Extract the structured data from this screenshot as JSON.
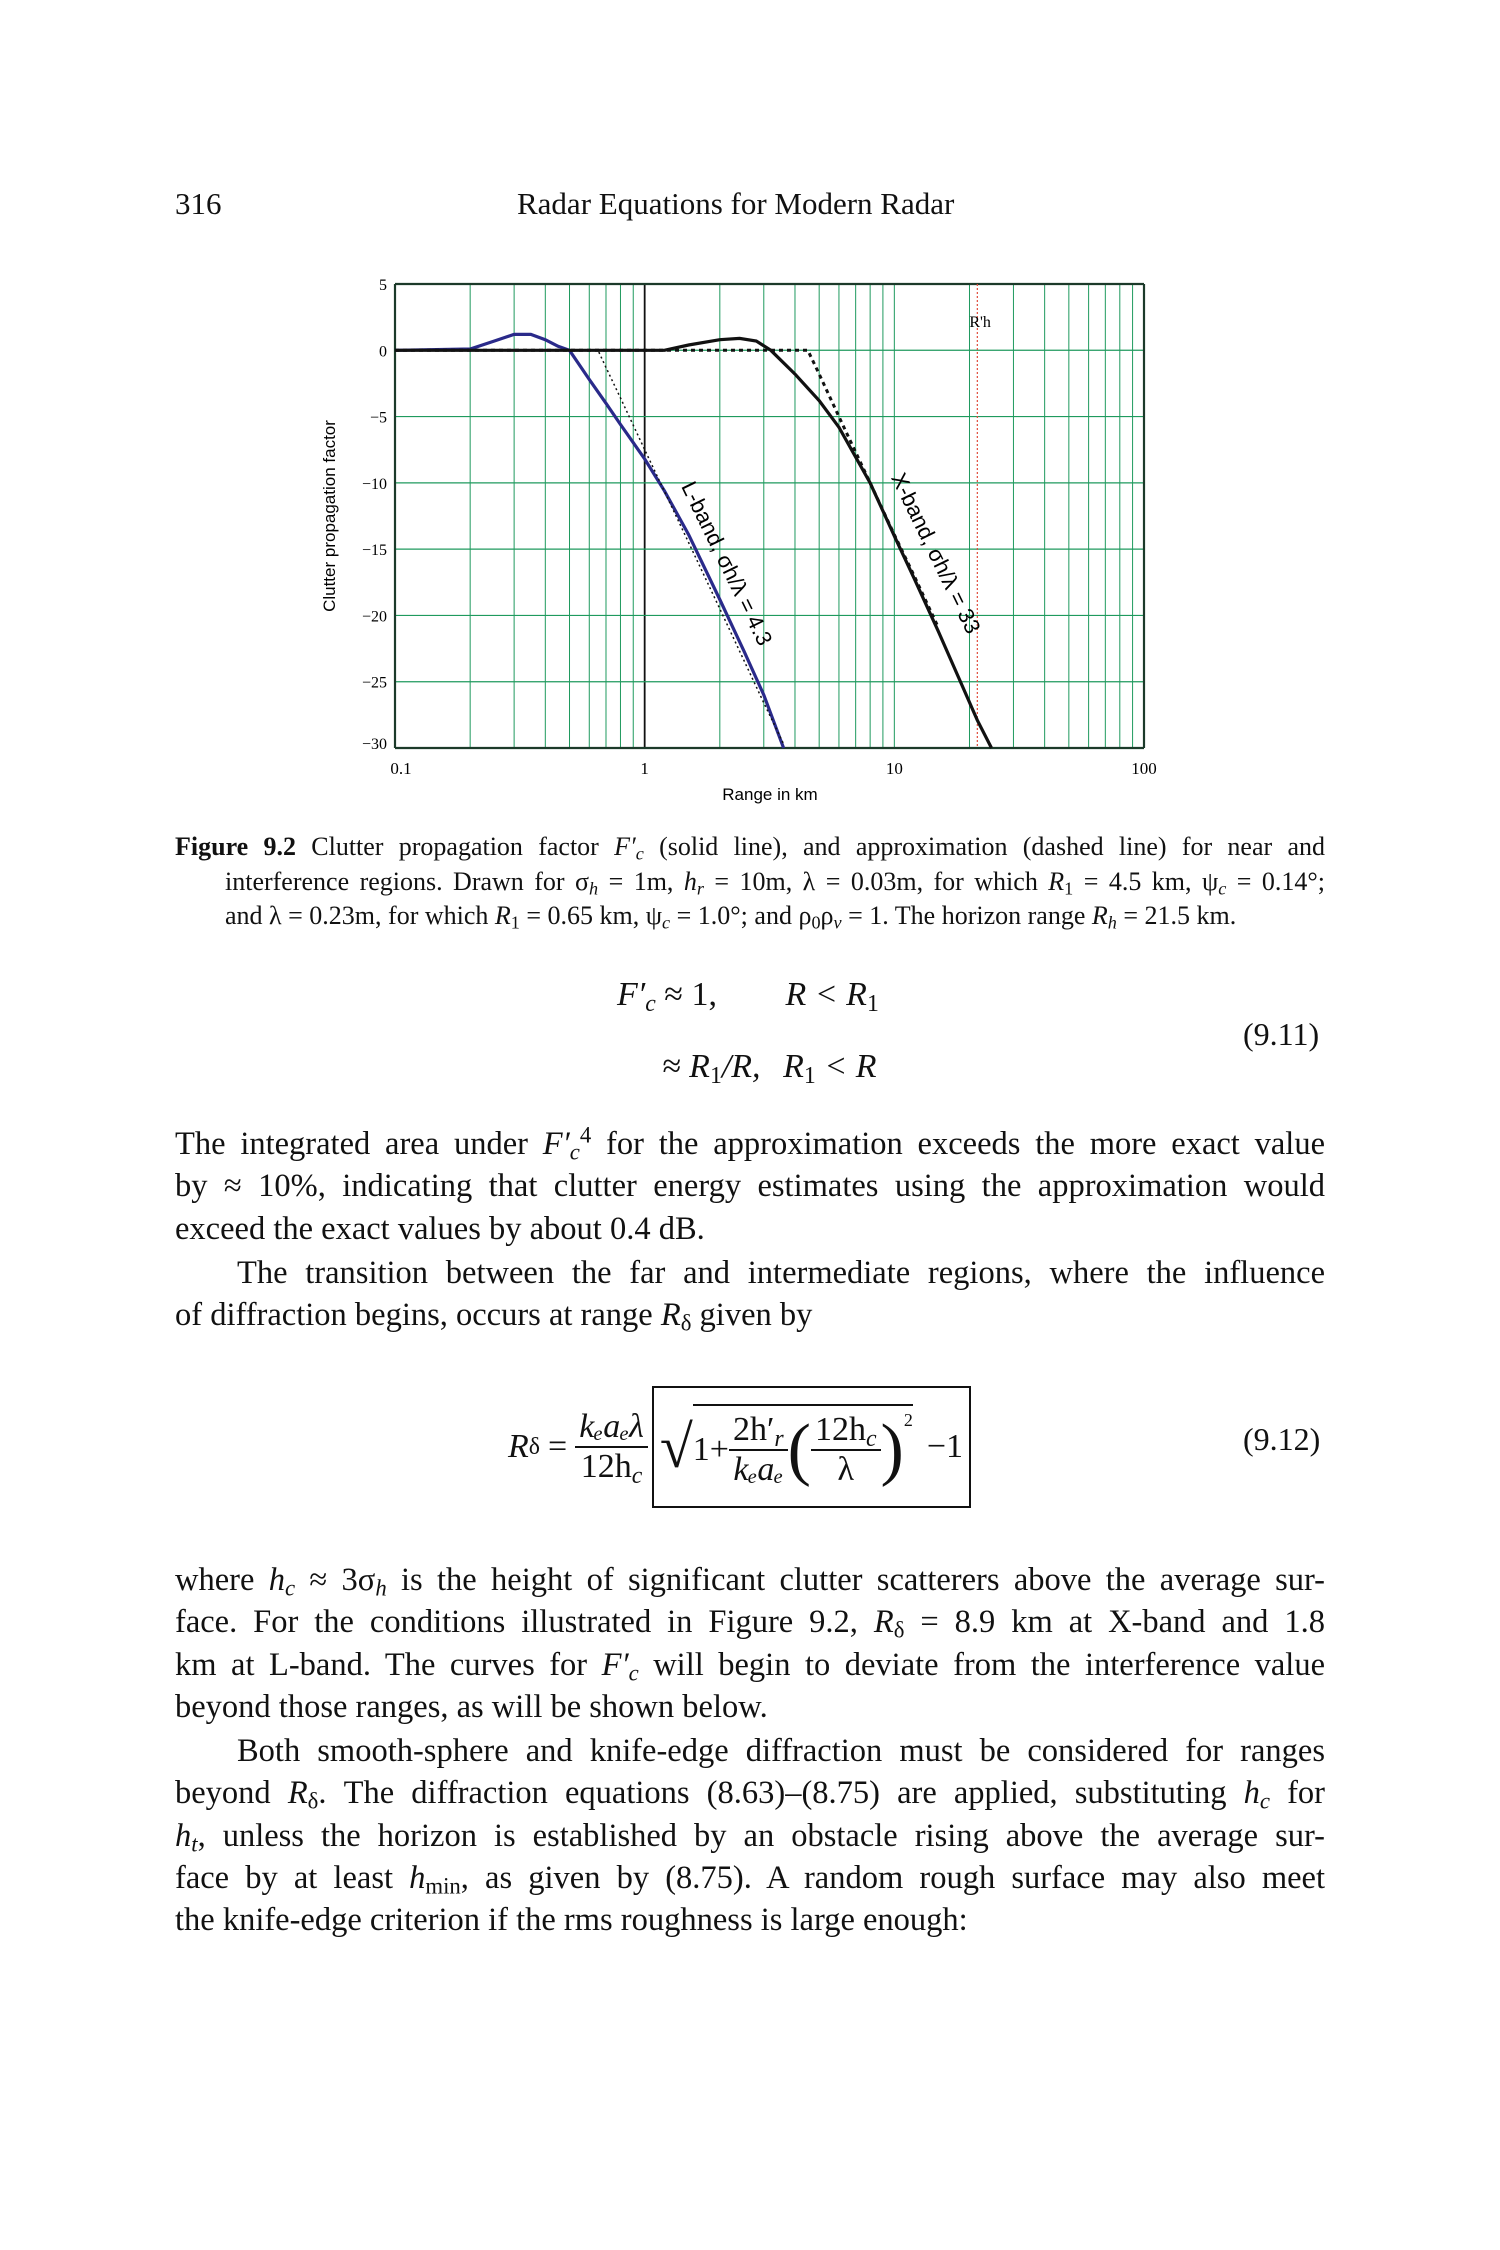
{
  "header": {
    "page_number": "316",
    "title": "Radar Equations for Modern Radar"
  },
  "chart_data": {
    "type": "line",
    "xlabel": "Range in km",
    "ylabel": "Clutter propagation factor",
    "x_scale": "log",
    "xlim": [
      0.1,
      100
    ],
    "ylim": [
      -30,
      5
    ],
    "x_ticks": [
      "0.1",
      "1",
      "10",
      "100"
    ],
    "y_ticks": [
      "5",
      "0",
      "−5",
      "−10",
      "−15",
      "−20",
      "−25",
      "−30"
    ],
    "y_tick_values": [
      5,
      0,
      -5,
      -10,
      -15,
      -20,
      -25,
      -30
    ],
    "grid": true,
    "colors": {
      "grid": "#1f9a5e",
      "l_band": "#2a2a8a",
      "x_band": "#111111",
      "rh_line": "#e04a3a"
    },
    "series": [
      {
        "name": "L-band, σh/λ = 4.3",
        "style": "solid",
        "x": [
          0.1,
          0.2,
          0.25,
          0.3,
          0.35,
          0.4,
          0.45,
          0.5,
          0.6,
          0.7,
          0.8,
          1.0,
          1.2,
          1.5,
          2.0,
          2.5,
          3.0,
          3.6
        ],
        "y": [
          0,
          0.1,
          0.7,
          1.2,
          1.2,
          0.8,
          0.3,
          0,
          -2.2,
          -4.0,
          -5.6,
          -8.2,
          -10.6,
          -13.9,
          -18.8,
          -22.7,
          -26.0,
          -30
        ]
      },
      {
        "name": "L-band approximation",
        "style": "dashed",
        "x": [
          0.1,
          0.65,
          0.7,
          0.8,
          1.0,
          1.5,
          2.0,
          3.0,
          3.6
        ],
        "y": [
          0,
          0,
          -1.3,
          -3.6,
          -7.5,
          -14.5,
          -19.5,
          -26.6,
          -29.7
        ]
      },
      {
        "name": "X-band, σh/λ = 33",
        "style": "solid",
        "x": [
          0.1,
          1.2,
          1.5,
          2.0,
          2.4,
          2.8,
          3.2,
          4.0,
          5.0,
          6.0,
          8.0,
          10.0,
          12.0,
          15.0,
          18.0,
          21.5,
          24.5
        ],
        "y": [
          0,
          0,
          0.4,
          0.8,
          0.9,
          0.7,
          0,
          -1.8,
          -3.8,
          -5.8,
          -10.0,
          -14.0,
          -17.2,
          -21.2,
          -24.6,
          -27.9,
          -30
        ]
      },
      {
        "name": "X-band approximation",
        "style": "dashed",
        "x": [
          0.1,
          4.5,
          5.0,
          6.0,
          8.0,
          10.0,
          12.0,
          15.0
        ],
        "y": [
          0,
          0,
          -1.8,
          -5.0,
          -10.0,
          -13.9,
          -17.0,
          -20.9
        ]
      }
    ],
    "annotations": [
      {
        "text": "L-band, σh/λ = 4.3"
      },
      {
        "text": "X-band, σh/λ = 33"
      },
      {
        "text": "R'h",
        "x": 21.5
      }
    ]
  },
  "caption": {
    "label": "Figure 9.2",
    "lines": [
      [
        [
          "  Clutter propagation factor ",
          ""
        ],
        [
          "F′",
          "i"
        ],
        [
          "c",
          "isub"
        ],
        [
          " (solid line), and approximation (dashed line) for near and",
          ""
        ]
      ],
      [
        [
          "interference regions. Drawn for σ",
          ""
        ],
        [
          "h",
          "isub"
        ],
        [
          " = 1m, ",
          ""
        ],
        [
          "h",
          "i"
        ],
        [
          "r",
          "isub"
        ],
        [
          " = 10m, λ = 0.03m, for which ",
          ""
        ],
        [
          "R",
          "i"
        ],
        [
          "1",
          "sub"
        ],
        [
          " = 4.5 km, ψ",
          ""
        ],
        [
          "c",
          "isub"
        ],
        [
          " = 0.14°;",
          ""
        ]
      ],
      [
        [
          "and λ = 0.23m, for which ",
          ""
        ],
        [
          "R",
          "i"
        ],
        [
          "1",
          "sub"
        ],
        [
          " = 0.65 km, ψ",
          ""
        ],
        [
          "c",
          "isub"
        ],
        [
          " = 1.0°; and ρ",
          ""
        ],
        [
          "0",
          "sub"
        ],
        [
          "ρ",
          ""
        ],
        [
          "v",
          "isub"
        ],
        [
          " = 1. The horizon range ",
          ""
        ],
        [
          "R",
          "i"
        ],
        [
          "h",
          "isub"
        ],
        [
          " = 21.5 km.",
          ""
        ]
      ]
    ]
  },
  "eq_9_11": {
    "line1_lhs": "F′",
    "line1_sub": "c",
    "line1_rel": " ≈ 1,",
    "line1_cond": "R < R",
    "line1_cond_sub": "1",
    "line2_rel": "≈ R",
    "line2_sub": "1",
    "line2_rest": "/R,",
    "line2_cond": "R",
    "line2_cond_sub": "1",
    "line2_cond_rest": " < R",
    "number": "(9.11)"
  },
  "eq_9_12": {
    "lhs": "R",
    "lhs_sub": "δ",
    "eq": "=",
    "f1_num": "kₑaₑλ",
    "f1_den": "12h",
    "f1_den_sub": "c",
    "one_plus": "1+",
    "f2_num": "2h′",
    "f2_num_sub": "r",
    "f2_den": "kₑaₑ",
    "f3_num": "12h",
    "f3_num_sub": "c",
    "f3_den": "λ",
    "power": "2",
    "minus_one": "−1",
    "number": "(9.12)"
  },
  "paragraphs": {
    "p1": [
      [
        [
          "The integrated area under ",
          ""
        ],
        [
          "F′",
          "i"
        ],
        [
          "c",
          "isub"
        ],
        [
          "4",
          "sup"
        ],
        [
          " for the approximation exceeds the more exact value",
          ""
        ]
      ],
      [
        [
          "by ≈ 10%, indicating that clutter energy estimates using the approximation would",
          ""
        ]
      ],
      [
        [
          "exceed the exact values by about 0.4 dB.",
          ""
        ]
      ]
    ],
    "p2": [
      [
        [
          "The transition between the far and intermediate regions, where the influence",
          ""
        ]
      ],
      [
        [
          "of diffraction begins, occurs at range ",
          ""
        ],
        [
          "R",
          "i"
        ],
        [
          "δ",
          "sub"
        ],
        [
          " given by",
          ""
        ]
      ]
    ],
    "p3": [
      [
        [
          "where ",
          ""
        ],
        [
          "h",
          "i"
        ],
        [
          "c",
          "isub"
        ],
        [
          " ≈ 3σ",
          ""
        ],
        [
          "h",
          "isub"
        ],
        [
          " is the height of significant clutter scatterers above the average sur-",
          ""
        ]
      ],
      [
        [
          "face. For the conditions illustrated in Figure 9.2, ",
          ""
        ],
        [
          "R",
          "i"
        ],
        [
          "δ",
          "sub"
        ],
        [
          " = 8.9 km at X-band and 1.8",
          ""
        ]
      ],
      [
        [
          "km at L-band. The curves for ",
          ""
        ],
        [
          "F′",
          "i"
        ],
        [
          "c",
          "isub"
        ],
        [
          " will begin to deviate from the interference value",
          ""
        ]
      ],
      [
        [
          "beyond those ranges, as will be shown below.",
          ""
        ]
      ]
    ],
    "p4": [
      [
        [
          "Both smooth-sphere and knife-edge diffraction must be considered for ranges",
          ""
        ]
      ],
      [
        [
          "beyond ",
          ""
        ],
        [
          "R",
          "i"
        ],
        [
          "δ",
          "sub"
        ],
        [
          ". The diffraction equations (8.63)–(8.75) are applied, substituting ",
          ""
        ],
        [
          "h",
          "i"
        ],
        [
          "c",
          "isub"
        ],
        [
          " for",
          ""
        ]
      ],
      [
        [
          "h",
          "i"
        ],
        [
          "t",
          "isub"
        ],
        [
          ", unless the horizon is established by an obstacle rising above the average sur-",
          ""
        ]
      ],
      [
        [
          "face by at least ",
          ""
        ],
        [
          "h",
          "i"
        ],
        [
          "min",
          "sub"
        ],
        [
          ", as given by (8.75). A random rough surface may also meet",
          ""
        ]
      ],
      [
        [
          "the knife-edge criterion if the rms roughness is large enough:",
          ""
        ]
      ]
    ]
  }
}
